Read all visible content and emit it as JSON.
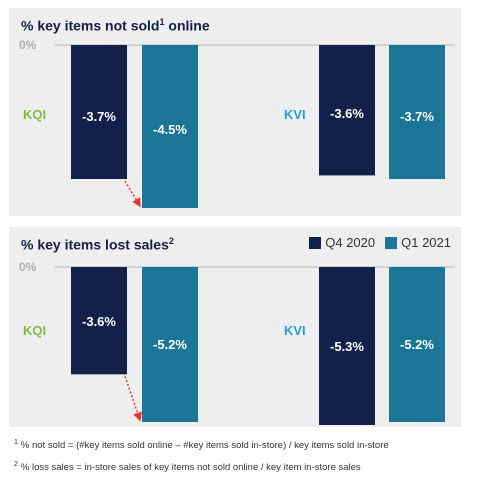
{
  "colors": {
    "q4": "#13204a",
    "q1": "#1a7597",
    "kqi": "#7cc242",
    "kvi": "#2a9fd6",
    "arrow": "#e8322e",
    "panel_bg": "#eeeeee"
  },
  "legend": [
    {
      "label": "Q4 2020",
      "color": "#13204a"
    },
    {
      "label": "Q1 2021",
      "color": "#1a7597"
    }
  ],
  "chart_data": [
    {
      "type": "bar",
      "title": "% key items not sold",
      "title_sup": "1",
      "title_suffix": " online",
      "zero_label": "0%",
      "categories": [
        "KQI",
        "KVI"
      ],
      "series": [
        {
          "name": "Q4 2020",
          "values": [
            -3.7,
            -3.6
          ],
          "labels": [
            "-3.7%",
            "-3.6%"
          ]
        },
        {
          "name": "Q1 2021",
          "values": [
            -4.5,
            -3.7
          ],
          "labels": [
            "-4.5%",
            "-3.7%"
          ]
        }
      ],
      "ylim": [
        -4.5,
        0
      ]
    },
    {
      "type": "bar",
      "title": "% key items lost sales",
      "title_sup": "2",
      "title_suffix": "",
      "zero_label": "0%",
      "categories": [
        "KQI",
        "KVI"
      ],
      "series": [
        {
          "name": "Q4 2020",
          "values": [
            -3.6,
            -5.3
          ],
          "labels": [
            "-3.6%",
            "-5.3%"
          ]
        },
        {
          "name": "Q1 2021",
          "values": [
            -5.2,
            -5.2
          ],
          "labels": [
            "-5.2%",
            "-5.2%"
          ]
        }
      ],
      "ylim": [
        -5.3,
        0
      ]
    }
  ],
  "footnotes": [
    {
      "num": "1",
      "text": "% not sold = (#key items sold online – #key items sold in-store) / key items sold in-store"
    },
    {
      "num": "2",
      "text": "% loss sales = in-store sales of key items not sold online / key item in-store sales"
    }
  ]
}
